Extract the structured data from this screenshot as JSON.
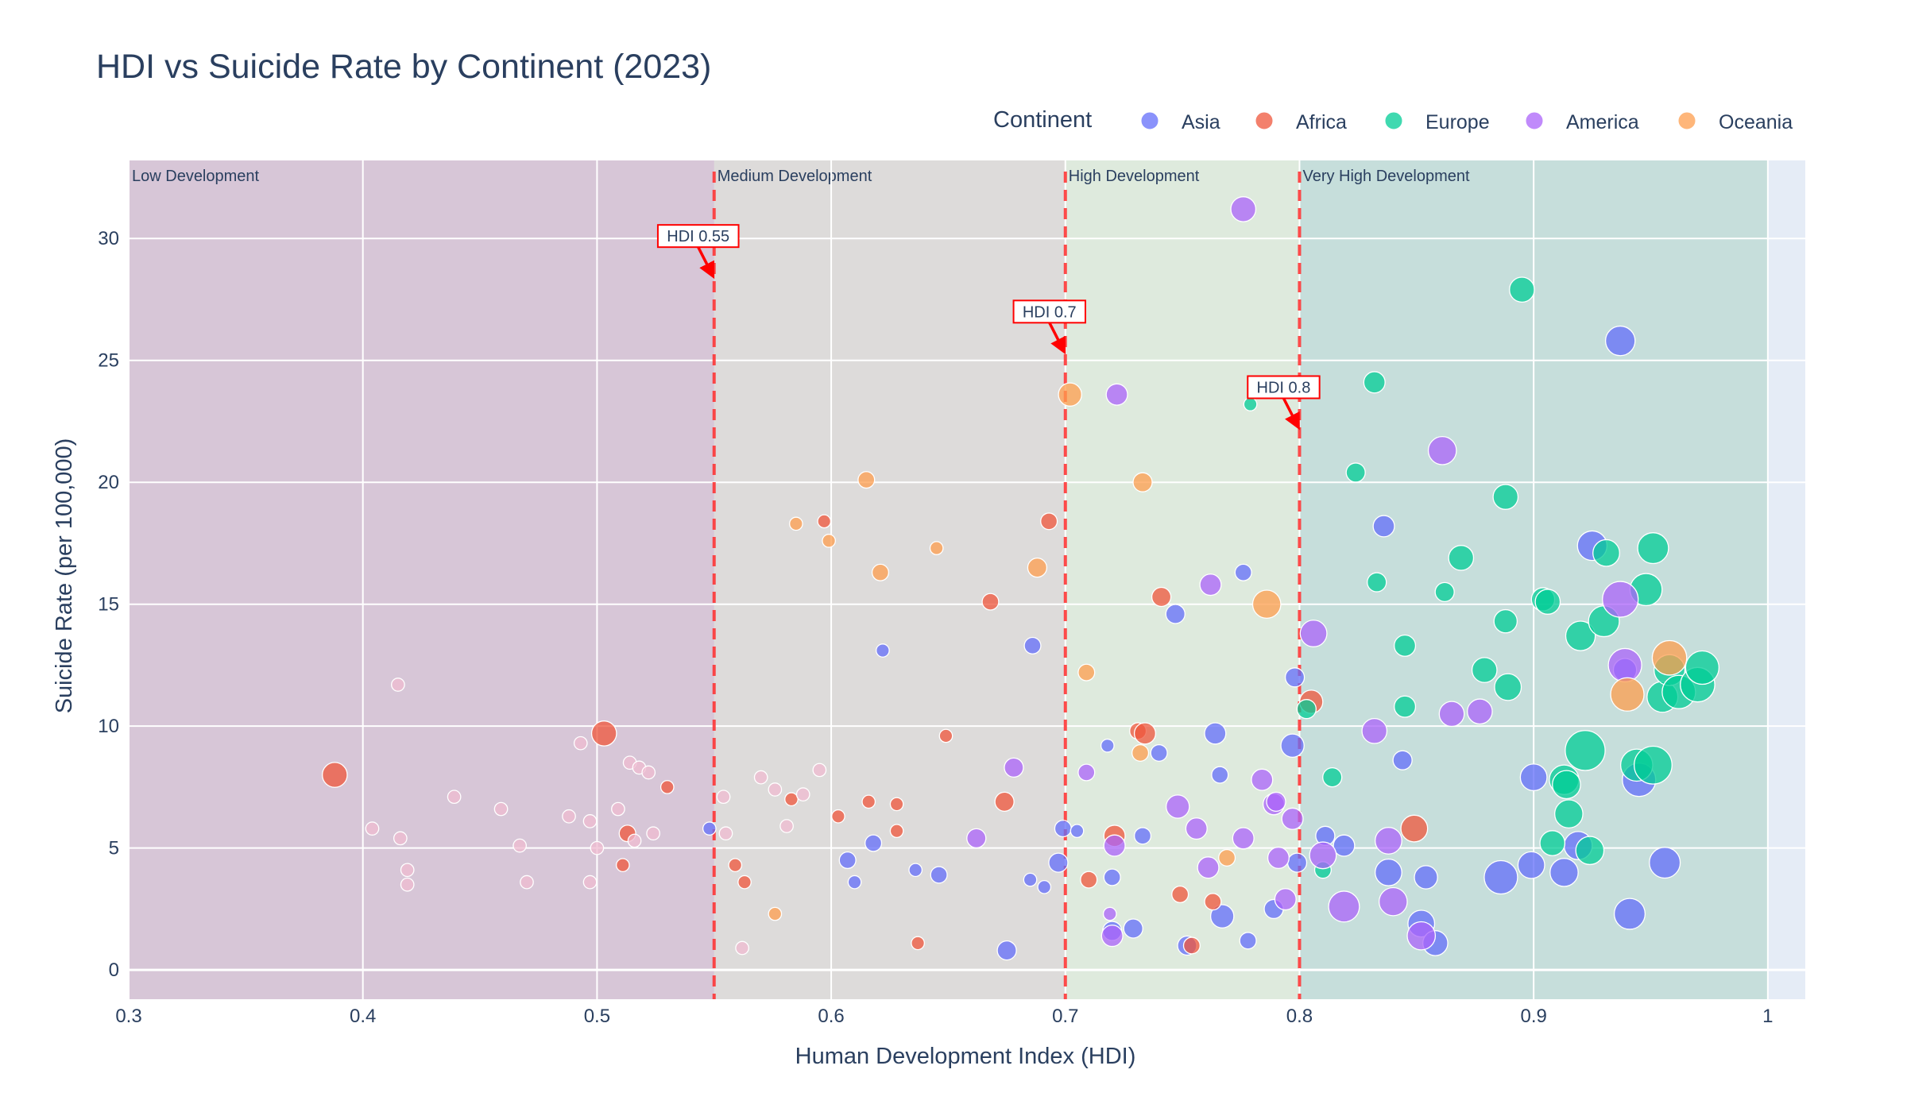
{
  "chart_data": {
    "type": "scatter",
    "title": "HDI vs Suicide Rate by Continent (2023)",
    "xlabel": "Human Development Index (HDI)",
    "ylabel": "Suicide Rate (per 100,000)",
    "xlim": [
      0.3,
      1.016
    ],
    "ylim": [
      -1.2,
      33.2
    ],
    "x_ticks": [
      0.3,
      0.4,
      0.5,
      0.6,
      0.7,
      0.8,
      0.9,
      1
    ],
    "x_tick_labels": [
      "0.3",
      "0.4",
      "0.5",
      "0.6",
      "0.7",
      "0.8",
      "0.9",
      "1"
    ],
    "y_ticks": [
      0,
      5,
      10,
      15,
      20,
      25,
      30
    ],
    "y_tick_labels": [
      "0",
      "5",
      "10",
      "15",
      "20",
      "25",
      "30"
    ],
    "grid": true,
    "legend": {
      "title": "Continent",
      "placement": "top-right, horizontal",
      "entries": [
        "Asia",
        "Africa",
        "Europe",
        "America",
        "Oceania"
      ]
    },
    "regions": [
      {
        "label": "Low Development",
        "x0": 0.3,
        "x1": 0.55,
        "color": "#c9a0b8"
      },
      {
        "label": "Medium Development",
        "x0": 0.55,
        "x1": 0.7,
        "color": "#d5c9bd"
      },
      {
        "label": "High Development",
        "x0": 0.7,
        "x1": 0.8,
        "color": "#d8e8c4"
      },
      {
        "label": "Very High Development",
        "x0": 0.8,
        "x1": 1.0,
        "color": "#a8d0c0"
      }
    ],
    "thresholds": [
      {
        "x": 0.55,
        "label": "HDI 0.55",
        "arrow_y": 28.3,
        "label_y": 30.1
      },
      {
        "x": 0.7,
        "label": "HDI 0.7",
        "arrow_y": 25.2,
        "label_y": 27.0
      },
      {
        "x": 0.8,
        "label": "HDI 0.8",
        "arrow_y": 22.1,
        "label_y": 23.9
      }
    ],
    "series": [
      {
        "name": "Asia",
        "color": "#636efa",
        "points": [
          [
            0.548,
            5.8,
            1
          ],
          [
            0.622,
            13.1,
            1
          ],
          [
            0.636,
            4.1,
            1
          ],
          [
            0.61,
            3.6,
            1
          ],
          [
            0.607,
            4.5,
            2
          ],
          [
            0.618,
            5.2,
            2
          ],
          [
            0.646,
            3.9,
            2
          ],
          [
            0.686,
            13.3,
            2
          ],
          [
            0.685,
            3.7,
            1
          ],
          [
            0.691,
            3.4,
            1
          ],
          [
            0.699,
            5.8,
            2
          ],
          [
            0.697,
            4.4,
            3
          ],
          [
            0.675,
            0.8,
            3
          ],
          [
            0.705,
            5.7,
            1
          ],
          [
            0.718,
            9.2,
            1
          ],
          [
            0.72,
            3.8,
            2
          ],
          [
            0.72,
            1.6,
            3
          ],
          [
            0.729,
            1.7,
            3
          ],
          [
            0.733,
            5.5,
            2
          ],
          [
            0.74,
            8.9,
            2
          ],
          [
            0.747,
            14.6,
            3
          ],
          [
            0.752,
            1.0,
            3
          ],
          [
            0.764,
            9.7,
            4
          ],
          [
            0.766,
            8.0,
            2
          ],
          [
            0.767,
            2.2,
            5
          ],
          [
            0.776,
            16.3,
            2
          ],
          [
            0.778,
            1.2,
            2
          ],
          [
            0.789,
            2.5,
            3
          ],
          [
            0.797,
            9.2,
            5
          ],
          [
            0.798,
            12.0,
            3
          ],
          [
            0.799,
            4.4,
            3
          ],
          [
            0.811,
            5.5,
            3
          ],
          [
            0.819,
            5.1,
            4
          ],
          [
            0.836,
            18.2,
            4
          ],
          [
            0.838,
            4.0,
            7
          ],
          [
            0.844,
            8.6,
            3
          ],
          [
            0.852,
            1.9,
            7
          ],
          [
            0.854,
            3.8,
            5
          ],
          [
            0.858,
            1.1,
            6
          ],
          [
            0.886,
            3.8,
            12
          ],
          [
            0.899,
            4.3,
            7
          ],
          [
            0.9,
            7.9,
            7
          ],
          [
            0.913,
            4.0,
            8
          ],
          [
            0.919,
            5.1,
            8
          ],
          [
            0.925,
            17.4,
            9
          ],
          [
            0.937,
            25.8,
            9
          ],
          [
            0.939,
            12.3,
            5
          ],
          [
            0.941,
            2.3,
            10
          ],
          [
            0.945,
            7.8,
            12
          ],
          [
            0.956,
            4.4,
            10
          ]
        ]
      },
      {
        "name": "Africa",
        "color": "#ef553b",
        "points": [
          [
            0.388,
            8.0,
            6
          ],
          [
            0.503,
            9.7,
            6
          ],
          [
            0.513,
            5.6,
            2
          ],
          [
            0.511,
            4.3,
            1
          ],
          [
            0.53,
            7.5,
            1
          ],
          [
            0.559,
            4.3,
            1
          ],
          [
            0.563,
            3.6,
            1
          ],
          [
            0.583,
            7.0,
            1
          ],
          [
            0.597,
            18.4,
            1
          ],
          [
            0.603,
            6.3,
            1
          ],
          [
            0.616,
            6.9,
            1
          ],
          [
            0.628,
            5.7,
            1
          ],
          [
            0.628,
            6.8,
            1
          ],
          [
            0.637,
            1.1,
            1
          ],
          [
            0.649,
            9.6,
            1
          ],
          [
            0.668,
            15.1,
            2
          ],
          [
            0.674,
            6.9,
            3
          ],
          [
            0.693,
            18.4,
            2
          ],
          [
            0.71,
            3.7,
            2
          ],
          [
            0.721,
            5.5,
            4
          ],
          [
            0.731,
            9.8,
            2
          ],
          [
            0.734,
            9.7,
            4
          ],
          [
            0.741,
            15.3,
            3
          ],
          [
            0.749,
            3.1,
            2
          ],
          [
            0.754,
            1.0,
            2
          ],
          [
            0.763,
            2.8,
            2
          ],
          [
            0.805,
            11.0,
            5
          ],
          [
            0.849,
            5.8,
            7
          ]
        ]
      },
      {
        "name": "Europe",
        "color": "#00cc96",
        "points": [
          [
            0.779,
            23.2,
            1
          ],
          [
            0.803,
            10.7,
            3
          ],
          [
            0.81,
            4.1,
            2
          ],
          [
            0.814,
            7.9,
            3
          ],
          [
            0.824,
            20.4,
            3
          ],
          [
            0.832,
            24.1,
            4
          ],
          [
            0.833,
            15.9,
            3
          ],
          [
            0.845,
            13.3,
            4
          ],
          [
            0.845,
            10.8,
            4
          ],
          [
            0.862,
            15.5,
            3
          ],
          [
            0.869,
            16.9,
            6
          ],
          [
            0.879,
            12.3,
            6
          ],
          [
            0.888,
            19.4,
            6
          ],
          [
            0.888,
            14.3,
            5
          ],
          [
            0.889,
            11.6,
            7
          ],
          [
            0.895,
            27.9,
            6
          ],
          [
            0.904,
            15.2,
            5
          ],
          [
            0.906,
            15.1,
            6
          ],
          [
            0.908,
            5.2,
            6
          ],
          [
            0.913,
            7.8,
            9
          ],
          [
            0.914,
            7.6,
            8
          ],
          [
            0.915,
            6.4,
            8
          ],
          [
            0.92,
            13.7,
            9
          ],
          [
            0.922,
            9.0,
            18
          ],
          [
            0.924,
            4.9,
            8
          ],
          [
            0.93,
            14.3,
            10
          ],
          [
            0.931,
            17.1,
            7
          ],
          [
            0.944,
            8.4,
            11
          ],
          [
            0.948,
            15.6,
            11
          ],
          [
            0.951,
            17.3,
            10
          ],
          [
            0.951,
            8.4,
            16
          ],
          [
            0.955,
            11.2,
            10
          ],
          [
            0.958,
            12.3,
            10
          ],
          [
            0.962,
            11.4,
            12
          ],
          [
            0.97,
            11.7,
            13
          ],
          [
            0.972,
            12.4,
            12
          ]
        ]
      },
      {
        "name": "America",
        "color": "#ab63fa",
        "points": [
          [
            0.662,
            5.4,
            3
          ],
          [
            0.678,
            8.3,
            3
          ],
          [
            0.709,
            8.1,
            2
          ],
          [
            0.719,
            2.3,
            1
          ],
          [
            0.72,
            1.4,
            4
          ],
          [
            0.721,
            5.1,
            4
          ],
          [
            0.722,
            23.6,
            4
          ],
          [
            0.748,
            6.7,
            5
          ],
          [
            0.756,
            5.8,
            4
          ],
          [
            0.761,
            4.2,
            4
          ],
          [
            0.762,
            15.8,
            4
          ],
          [
            0.776,
            5.4,
            4
          ],
          [
            0.776,
            31.2,
            6
          ],
          [
            0.784,
            7.8,
            4
          ],
          [
            0.789,
            6.8,
            4
          ],
          [
            0.79,
            6.9,
            3
          ],
          [
            0.791,
            4.6,
            4
          ],
          [
            0.794,
            2.9,
            4
          ],
          [
            0.797,
            6.2,
            4
          ],
          [
            0.806,
            13.8,
            7
          ],
          [
            0.81,
            4.7,
            7
          ],
          [
            0.819,
            2.6,
            10
          ],
          [
            0.832,
            9.8,
            6
          ],
          [
            0.838,
            5.3,
            7
          ],
          [
            0.84,
            2.8,
            8
          ],
          [
            0.852,
            1.4,
            8
          ],
          [
            0.861,
            21.3,
            8
          ],
          [
            0.865,
            10.5,
            6
          ],
          [
            0.877,
            10.6,
            6
          ],
          [
            0.937,
            15.2,
            14
          ],
          [
            0.939,
            12.5,
            12
          ]
        ]
      },
      {
        "name": "Oceania",
        "color": "#fe9e4e",
        "points": [
          [
            0.576,
            2.3,
            1
          ],
          [
            0.585,
            18.3,
            1
          ],
          [
            0.599,
            17.6,
            1
          ],
          [
            0.615,
            20.1,
            2
          ],
          [
            0.621,
            16.3,
            2
          ],
          [
            0.645,
            17.3,
            1
          ],
          [
            0.688,
            16.5,
            3
          ],
          [
            0.702,
            23.6,
            5
          ],
          [
            0.709,
            12.2,
            2
          ],
          [
            0.732,
            8.9,
            2
          ],
          [
            0.733,
            20.0,
            3
          ],
          [
            0.769,
            4.6,
            2
          ],
          [
            0.786,
            15.0,
            8
          ],
          [
            0.94,
            11.3,
            12
          ],
          [
            0.958,
            12.8,
            13
          ]
        ]
      },
      {
        "name": "",
        "color": "#efbbd0",
        "points": [
          [
            0.404,
            5.8,
            1
          ],
          [
            0.415,
            11.7,
            1
          ],
          [
            0.416,
            5.4,
            1
          ],
          [
            0.419,
            4.1,
            1
          ],
          [
            0.419,
            3.5,
            1
          ],
          [
            0.439,
            7.1,
            1
          ],
          [
            0.459,
            6.6,
            1
          ],
          [
            0.467,
            5.1,
            1
          ],
          [
            0.47,
            3.6,
            1
          ],
          [
            0.488,
            6.3,
            1
          ],
          [
            0.493,
            9.3,
            1
          ],
          [
            0.497,
            6.1,
            1
          ],
          [
            0.497,
            3.6,
            1
          ],
          [
            0.5,
            5.0,
            1
          ],
          [
            0.509,
            6.6,
            1
          ],
          [
            0.514,
            8.5,
            1
          ],
          [
            0.516,
            5.3,
            1
          ],
          [
            0.518,
            8.3,
            1
          ],
          [
            0.522,
            8.1,
            1
          ],
          [
            0.524,
            5.6,
            1
          ],
          [
            0.555,
            5.6,
            1
          ],
          [
            0.554,
            7.1,
            1
          ],
          [
            0.57,
            7.9,
            1
          ],
          [
            0.576,
            7.4,
            1
          ],
          [
            0.581,
            5.9,
            1
          ],
          [
            0.588,
            7.2,
            1
          ],
          [
            0.595,
            8.2,
            1
          ],
          [
            0.562,
            0.9,
            1
          ]
        ]
      }
    ]
  }
}
